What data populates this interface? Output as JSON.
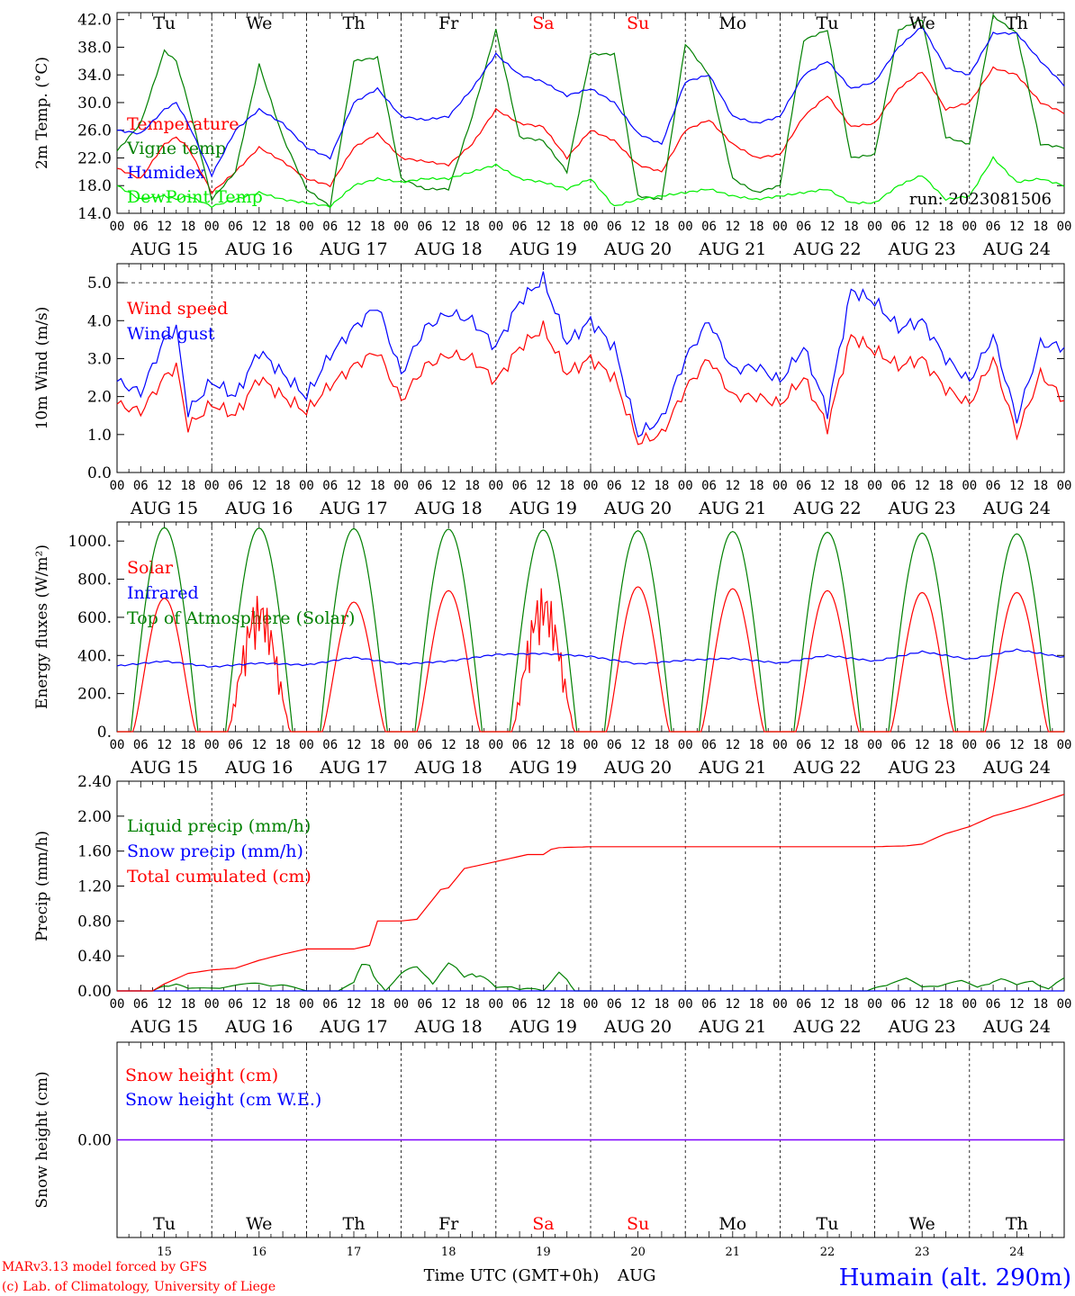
{
  "days": [
    "Tu",
    "We",
    "Th",
    "Fr",
    "Sa",
    "Su",
    "Mo",
    "Tu",
    "We",
    "Th"
  ],
  "weekend": [
    false,
    false,
    false,
    false,
    true,
    true,
    false,
    false,
    false,
    false
  ],
  "dates": [
    "AUG 15",
    "AUG 16",
    "AUG 17",
    "AUG 18",
    "AUG 19",
    "AUG 20",
    "AUG 21",
    "AUG 22",
    "AUG 23",
    "AUG 24"
  ],
  "daynums": [
    "15",
    "16",
    "17",
    "18",
    "19",
    "20",
    "21",
    "22",
    "23",
    "24"
  ],
  "hour_ticks": [
    "00",
    "06",
    "12",
    "18"
  ],
  "last_hour": "00",
  "run_label": "run: 2023081506",
  "footer": {
    "model": "MARv3.13 model forced by GFS",
    "credit": "(c) Lab. of Climatology, University of Liege",
    "xtitle": "Time UTC (GMT+0h)",
    "month": "AUG",
    "station": "Humain (alt. 290m)"
  },
  "colors": {
    "red": "#ff0000",
    "blue": "#0000ff",
    "green": "#008000",
    "lightgreen": "#00ee00",
    "purple": "#7f00ff",
    "black": "#000000"
  },
  "chart_data": [
    {
      "type": "line",
      "title": "",
      "ylabel": "2m Temp. (°C)",
      "ylim": [
        14,
        43
      ],
      "yticks": [
        "14.0",
        "18.0",
        "22.0",
        "26.0",
        "30.0",
        "34.0",
        "38.0",
        "42.0"
      ],
      "x_unit": "hours since AUG 15 00 UTC",
      "series": [
        {
          "name": "Temperature",
          "color": "red",
          "x": [
            0,
            6,
            12,
            15,
            18,
            24,
            30,
            36,
            42,
            48,
            54,
            60,
            66,
            72,
            78,
            84,
            90,
            96,
            102,
            108,
            114,
            120,
            126,
            132,
            138,
            144,
            150,
            156,
            162,
            168,
            174,
            180,
            186,
            192,
            198,
            204,
            210,
            216,
            222,
            228,
            234,
            240
          ],
          "y": [
            20.5,
            19,
            24,
            25,
            23.5,
            17,
            20,
            23.5,
            21.5,
            19,
            18,
            23.5,
            25.5,
            22,
            21.5,
            21,
            24,
            29,
            27,
            26.5,
            22,
            26,
            24.5,
            21,
            20,
            26,
            27.5,
            24,
            22,
            22.5,
            28,
            31,
            26.5,
            27,
            32,
            34.5,
            29,
            30,
            35,
            34,
            30,
            28.5
          ]
        },
        {
          "name": "Vigne temp",
          "color": "green",
          "x": [
            0,
            6,
            12,
            15,
            18,
            24,
            30,
            36,
            42,
            48,
            54,
            60,
            66,
            72,
            78,
            84,
            90,
            96,
            102,
            108,
            114,
            120,
            126,
            132,
            138,
            144,
            150,
            156,
            162,
            168,
            174,
            180,
            186,
            192,
            198,
            204,
            210,
            216,
            222,
            228,
            234,
            240
          ],
          "y": [
            23,
            27,
            37.5,
            36,
            30,
            16,
            20,
            35.5,
            25,
            17.5,
            15,
            36,
            36.5,
            19,
            17.5,
            17.5,
            28,
            40.5,
            25,
            24.5,
            20,
            37,
            37,
            16.5,
            16,
            38.5,
            34,
            19,
            17,
            18,
            39,
            40.5,
            22,
            22.5,
            40.5,
            42,
            25,
            24,
            42.5,
            40,
            24,
            23.5
          ]
        },
        {
          "name": "Humidex",
          "color": "blue",
          "x": [
            0,
            6,
            12,
            15,
            18,
            24,
            30,
            36,
            42,
            48,
            54,
            60,
            66,
            72,
            78,
            84,
            90,
            96,
            102,
            108,
            114,
            120,
            126,
            132,
            138,
            144,
            150,
            156,
            162,
            168,
            174,
            180,
            186,
            192,
            198,
            204,
            210,
            216,
            222,
            228,
            234,
            240
          ],
          "y": [
            26,
            25.5,
            29,
            30,
            27,
            19.5,
            26,
            29,
            27,
            23.5,
            22,
            30,
            32,
            28,
            27.5,
            28,
            32,
            37,
            34,
            33,
            31,
            32,
            30,
            25.5,
            24,
            33,
            34,
            28,
            27,
            28,
            34,
            36,
            32,
            33,
            38,
            41,
            35,
            34,
            40,
            40,
            36,
            32.5
          ]
        },
        {
          "name": "DewPoint Temp",
          "color": "lightgreen",
          "x": [
            0,
            6,
            12,
            15,
            18,
            24,
            30,
            36,
            42,
            48,
            54,
            60,
            66,
            72,
            78,
            84,
            90,
            96,
            102,
            108,
            114,
            120,
            126,
            132,
            138,
            144,
            150,
            156,
            162,
            168,
            174,
            180,
            186,
            192,
            198,
            204,
            210,
            216,
            222,
            228,
            234,
            240
          ],
          "y": [
            18,
            16,
            16.5,
            16,
            16.5,
            15,
            16,
            17,
            16,
            15.5,
            15,
            18,
            19,
            18.5,
            19,
            19,
            20,
            21,
            19,
            18.5,
            17.5,
            19,
            15,
            16,
            16.5,
            17,
            17.5,
            16.5,
            16,
            16.5,
            17,
            17.5,
            15.5,
            15.5,
            18,
            19.5,
            16,
            16.5,
            22,
            18.5,
            19,
            18
          ]
        }
      ]
    },
    {
      "type": "line",
      "title": "",
      "ylabel": "10m Wind (m/s)",
      "ylim": [
        0,
        5.5
      ],
      "yticks": [
        "0.0",
        "1.0",
        "2.0",
        "3.0",
        "4.0",
        "5.0"
      ],
      "x_unit": "hours since AUG 15 00 UTC",
      "series": [
        {
          "name": "Wind speed",
          "color": "red",
          "x": [
            0,
            6,
            12,
            15,
            18,
            24,
            30,
            36,
            42,
            48,
            54,
            60,
            66,
            72,
            78,
            84,
            90,
            96,
            102,
            108,
            114,
            120,
            126,
            132,
            138,
            144,
            150,
            156,
            162,
            168,
            174,
            180,
            186,
            192,
            198,
            204,
            210,
            216,
            222,
            228,
            234,
            240
          ],
          "y": [
            1.8,
            1.6,
            2.5,
            2.8,
            1.2,
            1.8,
            1.5,
            2.5,
            2.0,
            1.6,
            2.3,
            2.8,
            3.2,
            1.9,
            2.8,
            3.1,
            3.0,
            2.4,
            3.3,
            3.8,
            2.6,
            3.0,
            2.5,
            0.8,
            1.0,
            2.2,
            3.0,
            2.0,
            2.0,
            1.8,
            2.5,
            1.2,
            3.6,
            3.2,
            2.8,
            3.0,
            2.2,
            1.8,
            3.0,
            1.0,
            2.6,
            1.9
          ]
        },
        {
          "name": "Wind gust",
          "color": "blue",
          "x": [
            0,
            6,
            12,
            15,
            18,
            24,
            30,
            36,
            42,
            48,
            54,
            60,
            66,
            72,
            78,
            84,
            90,
            96,
            102,
            108,
            114,
            120,
            126,
            132,
            138,
            144,
            150,
            156,
            162,
            168,
            174,
            180,
            186,
            192,
            198,
            204,
            210,
            216,
            222,
            228,
            234,
            240
          ],
          "y": [
            2.4,
            2.1,
            3.5,
            3.8,
            1.6,
            2.4,
            2.0,
            3.2,
            2.6,
            2.0,
            3.1,
            3.8,
            4.4,
            2.6,
            3.8,
            4.2,
            4.0,
            3.3,
            4.5,
            5.1,
            3.4,
            4.0,
            3.3,
            1.0,
            1.4,
            3.0,
            4.0,
            2.7,
            2.8,
            2.4,
            3.3,
            1.6,
            4.8,
            4.5,
            3.8,
            4.0,
            3.0,
            2.4,
            3.6,
            1.4,
            3.4,
            3.3
          ]
        }
      ]
    },
    {
      "type": "line",
      "title": "",
      "ylabel": "Energy fluxes (W/m²)",
      "ylim": [
        0,
        1100
      ],
      "yticks": [
        "0.",
        "200.",
        "400.",
        "600.",
        "800.",
        "1000."
      ],
      "x_unit": "hours since AUG 15 00 UTC",
      "daily_peaks": {
        "Solar": [
          700,
          720,
          680,
          740,
          760,
          760,
          750,
          740,
          730,
          730
        ],
        "Top of Atmosphere (Solar)": [
          1070,
          1068,
          1065,
          1062,
          1058,
          1054,
          1050,
          1046,
          1042,
          1038
        ]
      },
      "series": [
        {
          "name": "Solar",
          "color": "red"
        },
        {
          "name": "Infrared",
          "color": "blue",
          "x": [
            0,
            12,
            24,
            36,
            48,
            60,
            72,
            84,
            96,
            108,
            120,
            132,
            144,
            156,
            168,
            180,
            192,
            204,
            216,
            228,
            240
          ],
          "y": [
            345,
            370,
            340,
            360,
            350,
            390,
            355,
            370,
            405,
            410,
            395,
            355,
            375,
            385,
            360,
            400,
            370,
            420,
            380,
            430,
            390
          ]
        },
        {
          "name": "Top of Atmosphere (Solar)",
          "color": "green"
        }
      ]
    },
    {
      "type": "line",
      "title": "",
      "ylabel": "Precip (mm/h)",
      "ylim": [
        0,
        2.4
      ],
      "yticks": [
        "0.00",
        "0.40",
        "0.80",
        "1.20",
        "1.60",
        "2.00",
        "2.40"
      ],
      "x_unit": "hours since AUG 15 00 UTC",
      "series": [
        {
          "name": "Liquid precip (mm/h)",
          "color": "green",
          "x": [
            0,
            9,
            12,
            15,
            18,
            24,
            30,
            36,
            42,
            48,
            56,
            60,
            62,
            64,
            66,
            68,
            72,
            76,
            78,
            80,
            82,
            84,
            86,
            88,
            90,
            92,
            96,
            100,
            102,
            104,
            106,
            108,
            110,
            112,
            114,
            116,
            118,
            120,
            150,
            190,
            196,
            200,
            204,
            210,
            214,
            218,
            222,
            224,
            228,
            232,
            236,
            238,
            240
          ],
          "y": [
            0,
            0,
            0.08,
            0.1,
            0.03,
            0.04,
            0.07,
            0.1,
            0.08,
            0,
            0,
            0.1,
            0.35,
            0.42,
            0.15,
            0,
            0.2,
            0.35,
            0.3,
            0.1,
            0.22,
            0.32,
            0.27,
            0.18,
            0.28,
            0.25,
            0.04,
            0.05,
            0.02,
            0.05,
            0.03,
            0,
            0.1,
            0.22,
            0.15,
            0,
            0,
            0,
            0,
            0,
            0.12,
            0.15,
            0.05,
            0.1,
            0.12,
            0.05,
            0.15,
            0.16,
            0.07,
            0.14,
            0.03,
            0.1,
            0.15
          ]
        },
        {
          "name": "Snow precip (mm/h)",
          "color": "blue",
          "x": [
            0,
            240
          ],
          "y": [
            0,
            0
          ]
        },
        {
          "name": "Total cumulated (cm)",
          "color": "red",
          "x": [
            0,
            9,
            12,
            18,
            24,
            30,
            36,
            42,
            48,
            54,
            60,
            64,
            66,
            72,
            76,
            82,
            84,
            88,
            96,
            100,
            104,
            108,
            110,
            112,
            120,
            150,
            170,
            192,
            200,
            204,
            210,
            216,
            222,
            230,
            240
          ],
          "y": [
            0,
            0,
            0.08,
            0.2,
            0.24,
            0.26,
            0.35,
            0.42,
            0.48,
            0.48,
            0.48,
            0.52,
            0.8,
            0.8,
            0.82,
            1.16,
            1.18,
            1.4,
            1.48,
            1.52,
            1.56,
            1.56,
            1.62,
            1.64,
            1.65,
            1.65,
            1.65,
            1.65,
            1.66,
            1.68,
            1.8,
            1.88,
            2.0,
            2.1,
            2.25
          ]
        }
      ]
    },
    {
      "type": "line",
      "title": "",
      "ylabel": "Snow height (cm)",
      "yticks": [
        "0.00"
      ],
      "x_unit": "hours since AUG 15 00 UTC",
      "series": [
        {
          "name": "Snow height (cm)",
          "color": "red",
          "x": [
            0,
            240
          ],
          "y": [
            0,
            0
          ]
        },
        {
          "name": "Snow height (cm W.E.)",
          "color": "blue",
          "x": [
            0,
            240
          ],
          "y": [
            0,
            0
          ]
        }
      ]
    }
  ]
}
